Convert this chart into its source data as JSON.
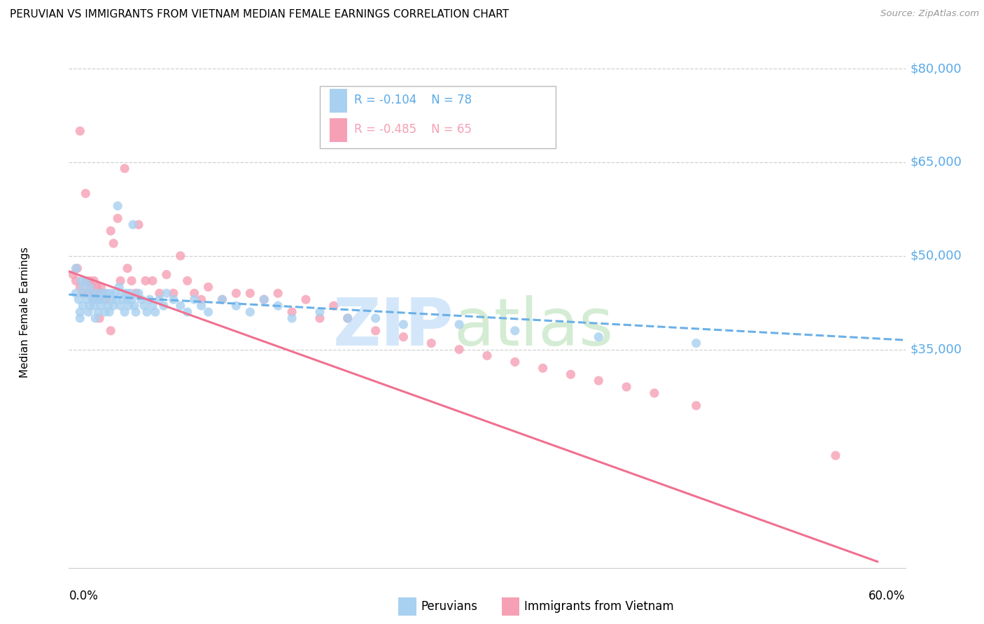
{
  "title": "PERUVIAN VS IMMIGRANTS FROM VIETNAM MEDIAN FEMALE EARNINGS CORRELATION CHART",
  "source": "Source: ZipAtlas.com",
  "ylabel": "Median Female Earnings",
  "xlim": [
    0.0,
    0.6
  ],
  "ylim": [
    0,
    82000
  ],
  "yticks": [
    35000,
    50000,
    65000,
    80000
  ],
  "ytick_labels": [
    "$35,000",
    "$50,000",
    "$65,000",
    "$80,000"
  ],
  "legend_peruvian_r": "R = -0.104",
  "legend_peruvian_n": "N = 78",
  "legend_vietnam_r": "R = -0.485",
  "legend_vietnam_n": "N = 65",
  "peruvian_color": "#a8d0f0",
  "vietnam_color": "#f5a0b5",
  "trend_peruvian_color": "#6ab0e8",
  "trend_vietnam_color": "#f07090",
  "background_color": "#ffffff",
  "grid_color": "#d0d0d0",
  "axis_color": "#5aaae8",
  "peruvians_label": "Peruvians",
  "vietnam_label": "Immigrants from Vietnam",
  "peruvian_scatter_x": [
    0.005,
    0.007,
    0.008,
    0.009,
    0.01,
    0.01,
    0.011,
    0.012,
    0.013,
    0.014,
    0.015,
    0.015,
    0.016,
    0.017,
    0.018,
    0.019,
    0.02,
    0.02,
    0.021,
    0.022,
    0.023,
    0.024,
    0.025,
    0.026,
    0.027,
    0.028,
    0.029,
    0.03,
    0.031,
    0.032,
    0.033,
    0.034,
    0.035,
    0.036,
    0.037,
    0.038,
    0.039,
    0.04,
    0.041,
    0.042,
    0.043,
    0.044,
    0.045,
    0.046,
    0.047,
    0.048,
    0.05,
    0.052,
    0.054,
    0.056,
    0.058,
    0.06,
    0.062,
    0.065,
    0.068,
    0.07,
    0.075,
    0.08,
    0.085,
    0.09,
    0.095,
    0.1,
    0.11,
    0.12,
    0.13,
    0.14,
    0.15,
    0.16,
    0.18,
    0.2,
    0.22,
    0.24,
    0.28,
    0.32,
    0.38,
    0.45,
    0.005,
    0.008
  ],
  "peruvian_scatter_y": [
    44000,
    43000,
    41000,
    46000,
    45000,
    42000,
    44000,
    46000,
    43000,
    41000,
    45000,
    42000,
    44000,
    43000,
    42000,
    40000,
    44000,
    43000,
    41000,
    43000,
    42000,
    44000,
    43000,
    41000,
    44000,
    42000,
    41000,
    44000,
    43000,
    42000,
    44000,
    43000,
    58000,
    45000,
    42000,
    44000,
    43000,
    41000,
    44000,
    43000,
    42000,
    44000,
    43000,
    55000,
    42000,
    41000,
    44000,
    43000,
    42000,
    41000,
    43000,
    42000,
    41000,
    43000,
    42000,
    44000,
    43000,
    42000,
    41000,
    43000,
    42000,
    41000,
    43000,
    42000,
    41000,
    43000,
    42000,
    40000,
    41000,
    40000,
    40000,
    39000,
    39000,
    38000,
    37000,
    36000,
    48000,
    40000
  ],
  "vietnam_scatter_x": [
    0.003,
    0.005,
    0.006,
    0.008,
    0.01,
    0.012,
    0.013,
    0.015,
    0.016,
    0.017,
    0.018,
    0.019,
    0.02,
    0.021,
    0.022,
    0.023,
    0.025,
    0.027,
    0.03,
    0.032,
    0.035,
    0.037,
    0.04,
    0.042,
    0.045,
    0.048,
    0.05,
    0.055,
    0.06,
    0.065,
    0.07,
    0.075,
    0.08,
    0.085,
    0.09,
    0.095,
    0.1,
    0.11,
    0.12,
    0.13,
    0.14,
    0.15,
    0.16,
    0.17,
    0.18,
    0.19,
    0.2,
    0.22,
    0.24,
    0.26,
    0.28,
    0.3,
    0.32,
    0.34,
    0.36,
    0.38,
    0.4,
    0.42,
    0.45,
    0.55,
    0.008,
    0.012,
    0.018,
    0.022,
    0.03
  ],
  "vietnam_scatter_y": [
    47000,
    46000,
    48000,
    45000,
    44000,
    46000,
    44000,
    46000,
    45000,
    44000,
    46000,
    44000,
    45000,
    44000,
    43000,
    45000,
    44000,
    43000,
    54000,
    52000,
    56000,
    46000,
    64000,
    48000,
    46000,
    44000,
    55000,
    46000,
    46000,
    44000,
    47000,
    44000,
    50000,
    46000,
    44000,
    43000,
    45000,
    43000,
    44000,
    44000,
    43000,
    44000,
    41000,
    43000,
    40000,
    42000,
    40000,
    38000,
    37000,
    36000,
    35000,
    34000,
    33000,
    32000,
    31000,
    30000,
    29000,
    28000,
    26000,
    18000,
    70000,
    60000,
    43000,
    40000,
    38000
  ],
  "trend_peru_x0": 0.0,
  "trend_peru_x1": 0.6,
  "trend_peru_y0": 43800,
  "trend_peru_y1": 36500,
  "trend_viet_x0": 0.0,
  "trend_viet_x1": 0.58,
  "trend_viet_y0": 47500,
  "trend_viet_y1": 1000
}
